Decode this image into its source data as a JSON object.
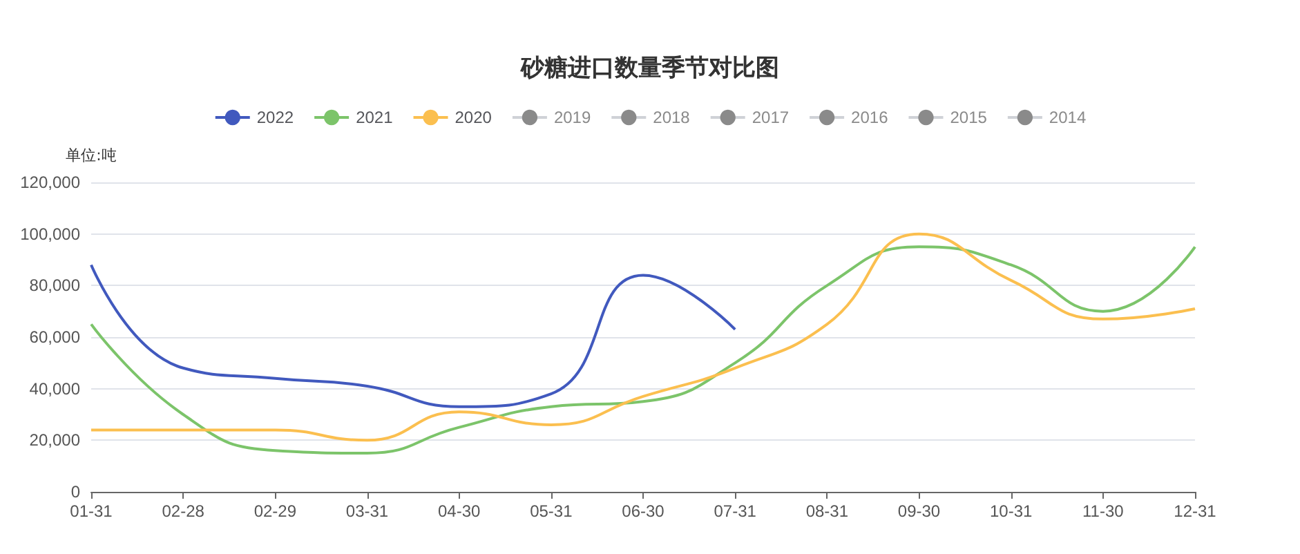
{
  "chart_data": {
    "type": "line",
    "title": "砂糖进口数量季节对比图",
    "ylabel": "单位:吨",
    "categories": [
      "01-31",
      "02-28",
      "02-29",
      "03-31",
      "04-30",
      "05-31",
      "06-30",
      "07-31",
      "08-31",
      "09-30",
      "10-31",
      "11-30",
      "12-31"
    ],
    "series": [
      {
        "name": "2022",
        "color": "#4159be",
        "values": [
          88000,
          48000,
          44000,
          41000,
          33000,
          38000,
          84000,
          63000,
          null,
          null,
          null,
          null,
          null
        ]
      },
      {
        "name": "2021",
        "color": "#7cc46a",
        "values": [
          65000,
          30000,
          16000,
          15000,
          25000,
          33000,
          35000,
          50000,
          80000,
          95000,
          88000,
          70000,
          95000
        ]
      },
      {
        "name": "2020",
        "color": "#fbbf4f",
        "values": [
          24000,
          24000,
          24000,
          20000,
          31000,
          26000,
          37000,
          48000,
          65000,
          100000,
          82000,
          67000,
          71000
        ]
      },
      {
        "name": "2019",
        "values": [
          null,
          null,
          null,
          null,
          null,
          null,
          null,
          null,
          null,
          null,
          null,
          null,
          null
        ]
      },
      {
        "name": "2018",
        "values": [
          null,
          null,
          null,
          null,
          null,
          null,
          null,
          null,
          null,
          null,
          null,
          null,
          null
        ]
      },
      {
        "name": "2017",
        "values": [
          null,
          null,
          null,
          null,
          null,
          null,
          null,
          null,
          null,
          null,
          null,
          null,
          null
        ]
      },
      {
        "name": "2016",
        "values": [
          null,
          null,
          null,
          null,
          null,
          null,
          null,
          null,
          null,
          null,
          null,
          null,
          null
        ]
      },
      {
        "name": "2015",
        "values": [
          null,
          null,
          null,
          null,
          null,
          null,
          null,
          null,
          null,
          null,
          null,
          null,
          null
        ]
      },
      {
        "name": "2014",
        "values": [
          null,
          null,
          null,
          null,
          null,
          null,
          null,
          null,
          null,
          null,
          null,
          null,
          null
        ]
      }
    ],
    "ylim": [
      0,
      120000
    ],
    "yticks": [
      0,
      {
        "value": 20000,
        "label": "20,000"
      },
      {
        "value": 40000,
        "label": "40,000"
      },
      {
        "value": 60000,
        "label": "60,000"
      },
      {
        "value": 80000,
        "label": "80,000"
      },
      {
        "value": 100000,
        "label": "100,000"
      },
      {
        "value": 120000,
        "label": "120,000"
      }
    ],
    "grid": "y",
    "legend": "top",
    "marker": "none",
    "line_style": "solid"
  }
}
